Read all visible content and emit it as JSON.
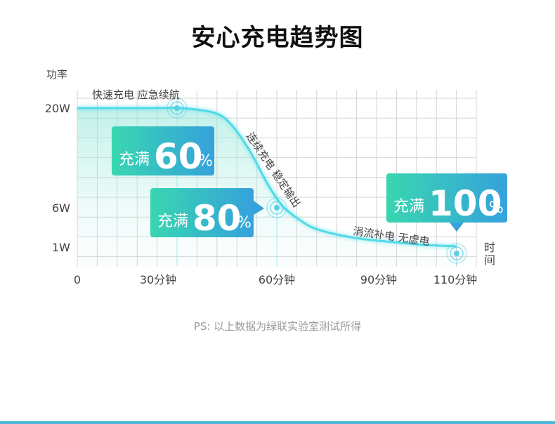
{
  "title": "安心充电趋势图",
  "note": "PS:  以上数据为绿联实验室测试所得",
  "chart_data": {
    "type": "line",
    "title": "安心充电趋势图",
    "ylabel": "功率",
    "xlabel": "时间",
    "y_ticks": [
      {
        "label": "20W",
        "value": 20
      },
      {
        "label": "6W",
        "value": 6
      },
      {
        "label": "1W",
        "value": 1
      }
    ],
    "x_ticks": [
      {
        "label": "0",
        "value": 0
      },
      {
        "label": "30分钟",
        "value": 30
      },
      {
        "label": "60分钟",
        "value": 60
      },
      {
        "label": "90分钟",
        "value": 90
      },
      {
        "label": "110分钟",
        "value": 110
      }
    ],
    "series": [
      {
        "x": [
          0,
          10,
          20,
          30,
          40,
          45,
          50,
          55,
          58,
          60,
          65,
          70,
          80,
          90,
          100,
          110
        ],
        "y": [
          20,
          20,
          20,
          20,
          19.3,
          17.5,
          14,
          9.5,
          7.2,
          6,
          4.3,
          3.2,
          2.2,
          1.7,
          1.3,
          1.1
        ]
      }
    ],
    "annotations": [
      {
        "text": "快速充电 应急续航",
        "x": 30,
        "y": 20
      },
      {
        "text": "连续充电 稳定输出",
        "x": 60,
        "y": 6
      },
      {
        "text": "涓流补电 无虚电",
        "x": 110,
        "y": 1
      }
    ],
    "callouts": [
      {
        "prefix": "充满",
        "value": "60",
        "unit": "%",
        "x": 30
      },
      {
        "prefix": "充满",
        "value": "80",
        "unit": "%",
        "x": 60
      },
      {
        "prefix": "充满",
        "value": "100",
        "unit": "%",
        "x": 110
      }
    ],
    "xlim": [
      0,
      110
    ],
    "colors": {
      "line": "#4fdbe8",
      "marker": "#58cfe6",
      "callout_start": "#38d6b0",
      "callout_end": "#36a2dc",
      "grid": "#d4d4d4"
    },
    "grid": true
  }
}
